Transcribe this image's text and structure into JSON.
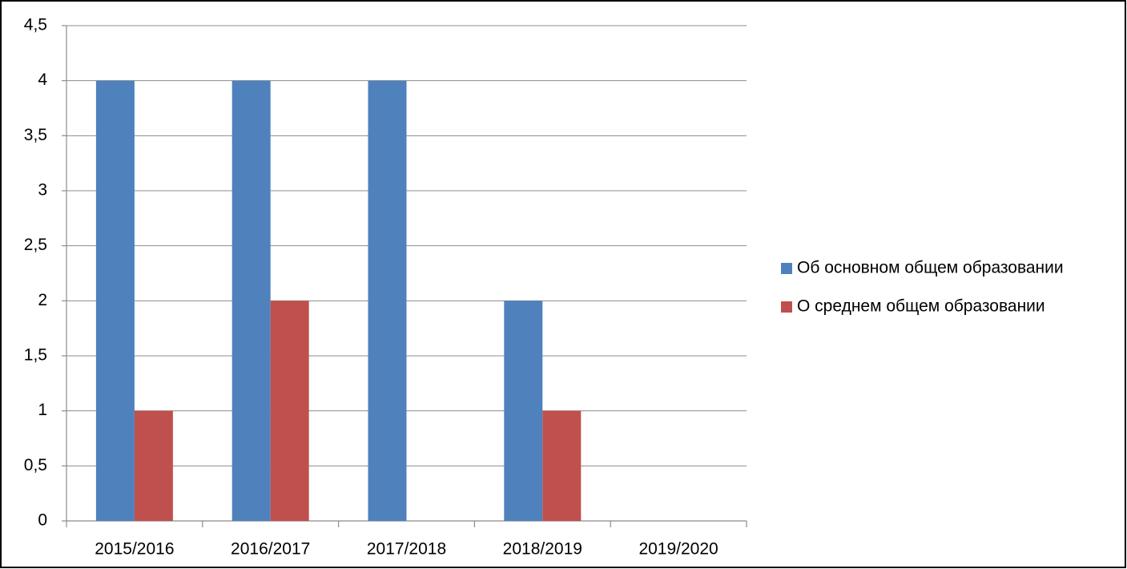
{
  "chart_data": {
    "type": "bar",
    "categories": [
      "2015/2016",
      "2016/2017",
      "2017/2018",
      "2018/2019",
      "2019/2020"
    ],
    "series": [
      {
        "name": "Об основном общем образовании",
        "color": "#4f81bd",
        "values": [
          4,
          4,
          4,
          2,
          0
        ]
      },
      {
        "name": "О среднем общем образовании",
        "color": "#c0504d",
        "values": [
          1,
          2,
          0,
          1,
          0
        ]
      }
    ],
    "ylim": [
      0,
      4.5
    ],
    "yticks": [
      0,
      {
        "value": 0.5,
        "label": "0,5"
      },
      1,
      {
        "value": 1.5,
        "label": "1,5"
      },
      2,
      {
        "value": 2.5,
        "label": "2,5"
      },
      3,
      {
        "value": 3.5,
        "label": "3,5"
      },
      4,
      {
        "value": 4.5,
        "label": "4,5"
      }
    ],
    "grid": true,
    "legend": "right"
  }
}
